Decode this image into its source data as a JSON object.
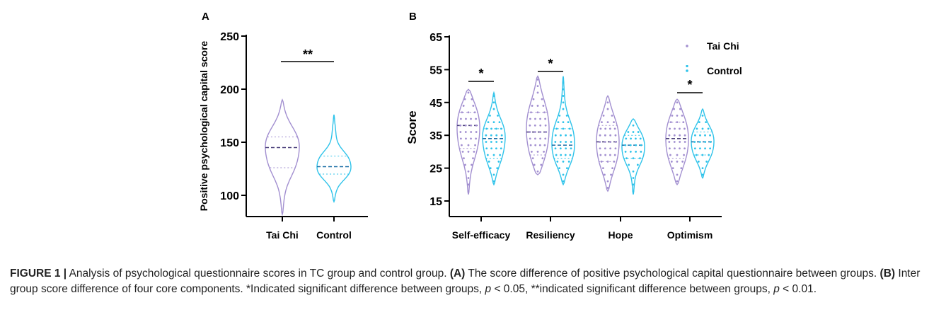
{
  "colors": {
    "tai_chi": "#a28fd0",
    "control": "#2fc3ea",
    "axis": "#000000"
  },
  "chart_data": [
    {
      "panel_label": "A",
      "type": "violin",
      "ylabel": "Positive psychological capital score",
      "ylim": [
        80,
        250
      ],
      "yticks": [
        "250",
        "200",
        "150",
        "100"
      ],
      "categories": [
        "Tai Chi",
        "Control"
      ],
      "series": [
        {
          "name": "Tai Chi",
          "min": 82,
          "max": 190,
          "q1": 126,
          "median": 145,
          "q3": 155
        },
        {
          "name": "Control",
          "min": 94,
          "max": 176,
          "q1": 120,
          "median": 127,
          "q3": 137
        }
      ],
      "significance": [
        {
          "between": [
            "Tai Chi",
            "Control"
          ],
          "label": "**"
        }
      ]
    },
    {
      "panel_label": "B",
      "type": "violin",
      "ylabel": "Score",
      "ylim": [
        10,
        65
      ],
      "yticks": [
        "65",
        "55",
        "45",
        "35",
        "25",
        "15"
      ],
      "categories": [
        "Self-efficacy",
        "Resiliency",
        "Hope",
        "Optimism"
      ],
      "series": [
        {
          "name": "Tai Chi",
          "values": [
            {
              "category": "Self-efficacy",
              "min": 17,
              "max": 49,
              "q1": 31,
              "median": 38,
              "q3": 42
            },
            {
              "category": "Resiliency",
              "min": 23,
              "max": 53,
              "q1": 29,
              "median": 36,
              "q3": 42
            },
            {
              "category": "Hope",
              "min": 18,
              "max": 47,
              "q1": 27,
              "median": 33,
              "q3": 38
            },
            {
              "category": "Optimism",
              "min": 20,
              "max": 46,
              "q1": 28,
              "median": 34,
              "q3": 39
            }
          ]
        },
        {
          "name": "Control",
          "values": [
            {
              "category": "Self-efficacy",
              "min": 20,
              "max": 48,
              "q1": 28,
              "median": 34,
              "q3": 37
            },
            {
              "category": "Resiliency",
              "min": 20,
              "max": 53,
              "q1": 28,
              "median": 32,
              "q3": 37
            },
            {
              "category": "Hope",
              "min": 17,
              "max": 40,
              "q1": 28,
              "median": 32,
              "q3": 35
            },
            {
              "category": "Optimism",
              "min": 22,
              "max": 43,
              "q1": 29,
              "median": 33,
              "q3": 36
            }
          ]
        }
      ],
      "significance": [
        {
          "category": "Self-efficacy",
          "label": "*"
        },
        {
          "category": "Resiliency",
          "label": "*"
        },
        {
          "category": "Optimism",
          "label": "*"
        }
      ],
      "legend": {
        "position": "top-right",
        "entries": [
          "Tai Chi",
          "Control"
        ]
      }
    }
  ],
  "caption": {
    "figure_label": "FIGURE 1 |",
    "text_1": " Analysis of psychological questionnaire scores in TC group and control group. ",
    "label_a": "(A)",
    "text_2": " The score difference of positive psychological capital questionnaire between groups. ",
    "label_b": "(B)",
    "text_3": " Inter group score difference of four core components. *Indicated significant difference between groups, ",
    "p_symbol_1": "p",
    "text_4": " < 0.05, **indicated significant difference between groups, ",
    "p_symbol_2": "p",
    "text_5": " < 0.01."
  }
}
